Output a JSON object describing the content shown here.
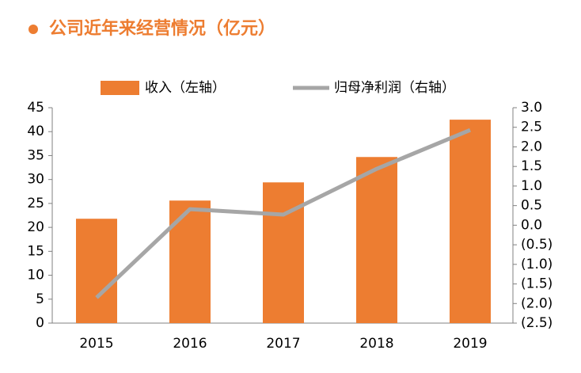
{
  "chart_data": {
    "type": "bar_line",
    "title": "公司近年来经营情况（亿元）",
    "categories": [
      "2015",
      "2016",
      "2017",
      "2018",
      "2019"
    ],
    "series": [
      {
        "name": "收入（左轴）",
        "color": "#ed7d31",
        "values": [
          21.8,
          25.6,
          29.4,
          34.7,
          42.5
        ]
      },
      {
        "name": "归母净利润（右轴）",
        "color": "#a6a6a6",
        "axis": "y2",
        "values": [
          -1.85,
          0.41,
          0.27,
          1.44,
          2.43
        ]
      }
    ],
    "ylim": [
      0,
      45
    ],
    "yticks": [
      0,
      5,
      10,
      15,
      20,
      25,
      30,
      35,
      40,
      45
    ],
    "y2lim": [
      -2.5,
      3.0
    ],
    "y2ticks": [
      {
        "value": -2.5,
        "label": "(2.5)"
      },
      {
        "value": -2,
        "label": "(2.0)"
      },
      {
        "value": -1.5,
        "label": "(1.5)"
      },
      {
        "value": -1,
        "label": "(1.0)"
      },
      {
        "value": -0.5,
        "label": "(0.5)"
      },
      {
        "value": 0,
        "label": "0.0"
      },
      0.5,
      {
        "value": 1,
        "label": "1.0"
      },
      1.5,
      {
        "value": 2,
        "label": "2.0"
      },
      2.5,
      {
        "value": 3,
        "label": "3.0"
      }
    ],
    "negative_tick_color": "#e00000",
    "grid": false
  }
}
